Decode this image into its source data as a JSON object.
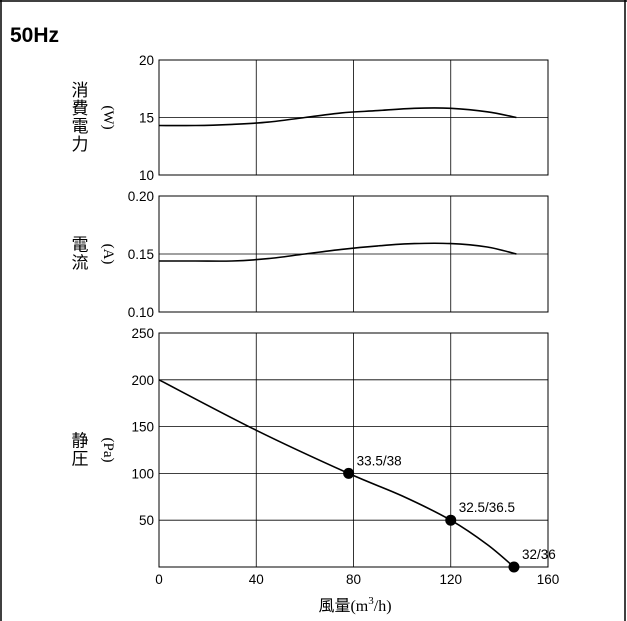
{
  "title": "50Hz",
  "chart_data": {
    "type": "line",
    "xlabel": "風量(m³/h)",
    "xlabel_parts": {
      "prefix": "風量(m",
      "sup": "3",
      "suffix": "/h)"
    },
    "xlim": [
      0,
      160
    ],
    "xticks": [
      "0",
      "40",
      "80",
      "120",
      "160"
    ],
    "grid": true,
    "panels": [
      {
        "id": "power",
        "ylabel": "消費電力",
        "yunit": "(W)",
        "ylim": [
          10,
          20
        ],
        "yticks": [
          "20",
          "15",
          "10"
        ],
        "series": [
          {
            "x": [
              0,
              15,
              30,
              45,
              60,
              75,
              90,
              105,
              120,
              135,
              147
            ],
            "y": [
              14.3,
              14.3,
              14.4,
              14.6,
              15.0,
              15.4,
              15.6,
              15.8,
              15.8,
              15.5,
              15.0
            ]
          }
        ]
      },
      {
        "id": "current",
        "ylabel": "電流",
        "yunit": "(A)",
        "ylim": [
          0.1,
          0.2
        ],
        "yticks": [
          "0.20",
          "0.15",
          "0.10"
        ],
        "series": [
          {
            "x": [
              0,
              15,
              30,
              45,
              60,
              75,
              90,
              105,
              120,
              135,
              147
            ],
            "y": [
              0.144,
              0.144,
              0.144,
              0.146,
              0.15,
              0.154,
              0.157,
              0.159,
              0.159,
              0.156,
              0.15
            ]
          }
        ]
      },
      {
        "id": "pressure",
        "ylabel": "静圧",
        "yunit": "(Pa)",
        "ylim": [
          0,
          250
        ],
        "yticks": [
          "250",
          "200",
          "150",
          "100",
          "50"
        ],
        "series": [
          {
            "x": [
              0,
              40,
              78,
              100,
              120,
              135,
              146
            ],
            "y": [
              200,
              146,
              100,
              76,
              50,
              24,
              0
            ]
          }
        ],
        "points": [
          {
            "x": 78,
            "y": 100,
            "label": "33.5/38"
          },
          {
            "x": 120,
            "y": 50,
            "label": "32.5/36.5"
          },
          {
            "x": 146,
            "y": 0,
            "label": "32/36"
          }
        ]
      }
    ]
  }
}
